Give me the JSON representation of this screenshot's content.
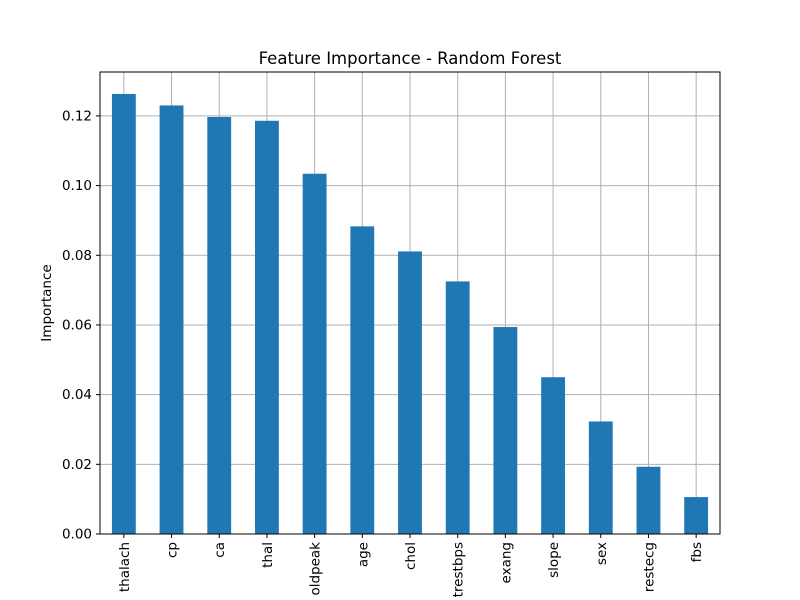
{
  "chart_data": {
    "type": "bar",
    "title": "Feature Importance - Random Forest",
    "xlabel": "",
    "ylabel": "Importance",
    "categories": [
      "thalach",
      "cp",
      "ca",
      "thal",
      "oldpeak",
      "age",
      "chol",
      "trestbps",
      "exang",
      "slope",
      "sex",
      "restecg",
      "fbs"
    ],
    "values": [
      0.1263,
      0.123,
      0.1197,
      0.1186,
      0.1034,
      0.0883,
      0.0811,
      0.0725,
      0.0594,
      0.045,
      0.0323,
      0.0193,
      0.0106
    ],
    "ylim": [
      0,
      0.1326
    ],
    "yticks": [
      "0.00",
      "0.02",
      "0.04",
      "0.06",
      "0.08",
      "0.10",
      "0.12"
    ],
    "grid": true,
    "legend": "none",
    "colors": {
      "bar": "#1f77b4",
      "grid": "#b0b0b0",
      "axis": "#000000"
    }
  }
}
